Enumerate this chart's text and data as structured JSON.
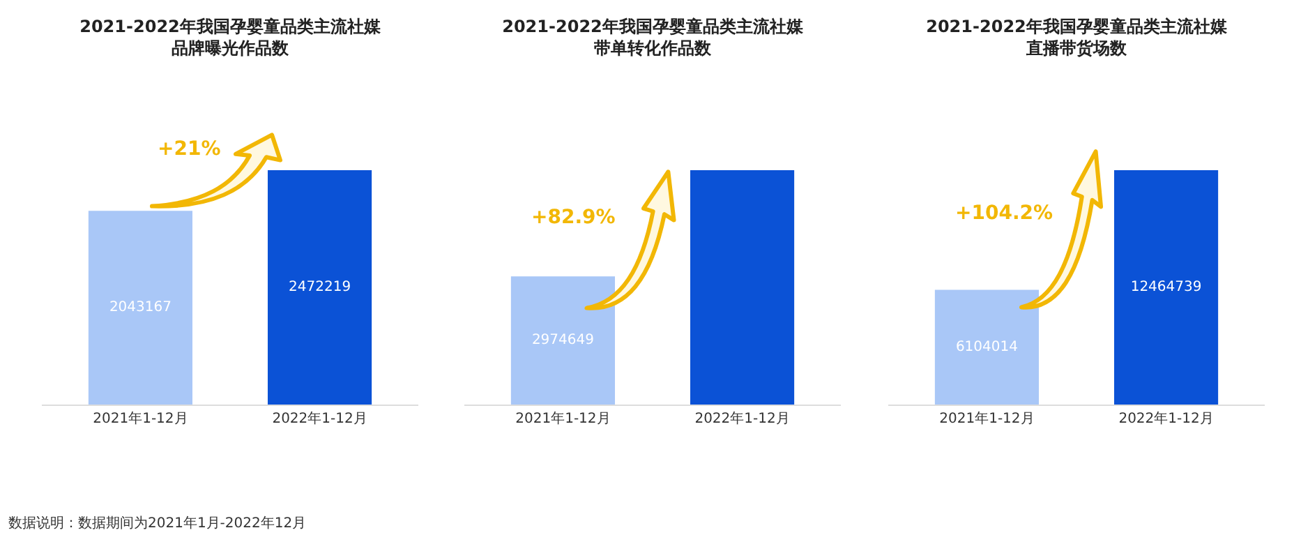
{
  "chart_data": [
    {
      "type": "bar",
      "title": "2021-2022年我国孕婴童品类主流社媒",
      "subtitle": "品牌曝光作品数",
      "categories": [
        "2021年1-12月",
        "2022年1-12月"
      ],
      "values": [
        2043167,
        2472219
      ],
      "colors": [
        "#a9c7f7",
        "#0b52d6"
      ],
      "value_labels": [
        "2043167",
        "2472219"
      ],
      "annotations": [
        "+21%",
        "数据说明：数据期间为2021年1月-2022年12月"
      ]
    },
    {
      "type": "bar",
      "title": "2021-2022年我国孕婴童品类主流社媒",
      "subtitle": "带单转化作品数",
      "categories": [
        "2021年1-12月",
        "2022年1-12月"
      ],
      "values": [
        2974649,
        5440633
      ],
      "colors": [
        "#a9c7f7",
        "#0b52d6"
      ],
      "value_labels": [
        "2974649",
        null
      ],
      "annotations": [
        "+82.9%"
      ]
    },
    {
      "type": "bar",
      "title": "2021-2022年我国孕婴童品类主流社媒",
      "subtitle": "直播带货场数",
      "categories": [
        "2021年1-12月",
        "2022年1-12月"
      ],
      "values": [
        6104014,
        12464739
      ],
      "colors": [
        "#a9c7f7",
        "#0b52d6"
      ],
      "value_labels": [
        "6104014",
        "12464739"
      ],
      "annotations": [
        "+104.2%"
      ]
    }
  ]
}
